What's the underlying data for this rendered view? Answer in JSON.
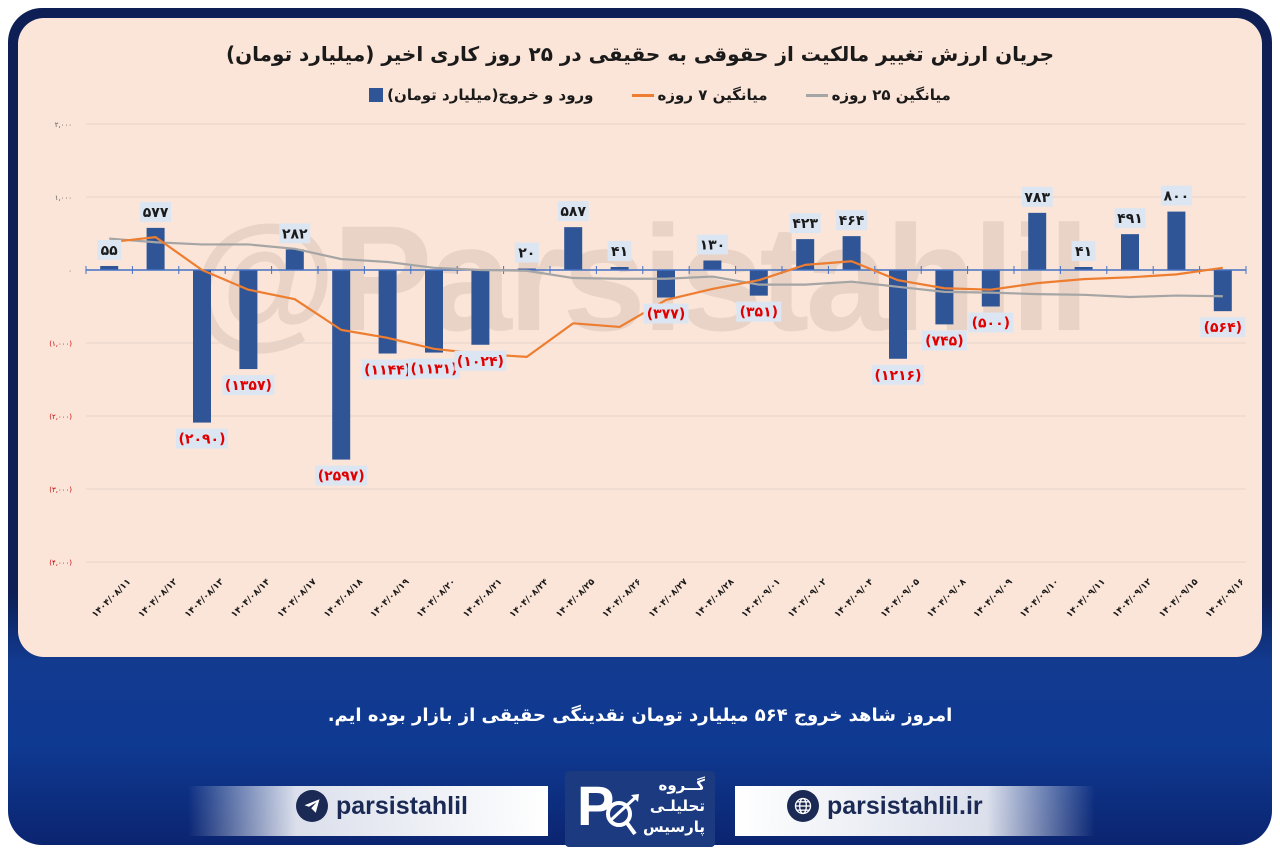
{
  "title": "جریان ارزش تغییر مالکیت از حقوقی به حقیقی در ۲۵ روز کاری اخیر (میلیارد تومان)",
  "legend": [
    {
      "label": "ورود و خروج(میلیارد تومان)",
      "type": "box",
      "color": "#2f5597"
    },
    {
      "label": "میانگین ۷ روزه",
      "type": "line",
      "color": "#ed7d31"
    },
    {
      "label": "میانگین ۲۵ روزه",
      "type": "line",
      "color": "#a5a5a5"
    }
  ],
  "watermark": "@Parsistahlil",
  "message": "امروز شاهد خروج ۵۶۴ میلیارد تومان نقدینگی حقیقی از بازار بوده ایم.",
  "footer": {
    "telegram_handle": "parsistahlil",
    "website": "parsistahlil.ir",
    "logo_text": [
      "گــروه",
      "تحلیلـی",
      "پارسیس"
    ]
  },
  "chart_data": {
    "type": "bar",
    "title": "جریان ارزش تغییر مالکیت از حقوقی به حقیقی در ۲۵ روز کاری اخیر (میلیارد تومان)",
    "xlabel": "",
    "ylabel": "",
    "ylim": [
      -4000,
      2000
    ],
    "yticks": [
      2000,
      1000,
      0,
      -1000,
      -2000,
      -3000,
      -4000
    ],
    "ytick_labels": [
      "۲,۰۰۰",
      "۱,۰۰۰",
      "۰",
      "(۱,۰۰۰)",
      "(۲,۰۰۰)",
      "(۳,۰۰۰)",
      "(۴,۰۰۰)"
    ],
    "grid": true,
    "legend_position": "top",
    "categories": [
      "۱۴۰۴/۰۸/۱۱",
      "۱۴۰۴/۰۸/۱۲",
      "۱۴۰۴/۰۸/۱۳",
      "۱۴۰۴/۰۸/۱۴",
      "۱۴۰۴/۰۸/۱۷",
      "۱۴۰۴/۰۸/۱۸",
      "۱۴۰۴/۰۸/۱۹",
      "۱۴۰۴/۰۸/۲۰",
      "۱۴۰۴/۰۸/۲۱",
      "۱۴۰۴/۰۸/۲۴",
      "۱۴۰۴/۰۸/۲۵",
      "۱۴۰۴/۰۸/۲۶",
      "۱۴۰۴/۰۸/۲۷",
      "۱۴۰۴/۰۸/۲۸",
      "۱۴۰۴/۰۹/۰۱",
      "۱۴۰۴/۰۹/۰۲",
      "۱۴۰۴/۰۹/۰۴",
      "۱۴۰۴/۰۹/۰۵",
      "۱۴۰۴/۰۹/۰۸",
      "۱۴۰۴/۰۹/۰۹",
      "۱۴۰۴/۰۹/۱۰",
      "۱۴۰۴/۰۹/۱۱",
      "۱۴۰۴/۰۹/۱۲",
      "۱۴۰۴/۰۹/۱۵",
      "۱۴۰۴/۰۹/۱۶"
    ],
    "series": [
      {
        "name": "ورود و خروج(میلیارد تومان)",
        "type": "bar",
        "color": "#2f5597",
        "values": [
          55,
          577,
          -2090,
          -1357,
          282,
          -2597,
          -1144,
          -1131,
          -1024,
          20,
          587,
          41,
          -377,
          130,
          -351,
          423,
          464,
          -1216,
          -745,
          -500,
          783,
          41,
          491,
          800,
          -564
        ],
        "labels": [
          "۵۵",
          "۵۷۷",
          "(۲۰۹۰)",
          "(۱۳۵۷)",
          "۲۸۲",
          "(۲۵۹۷)",
          "(۱۱۴۴)",
          "(۱۱۳۱)",
          "(۱۰۲۴)",
          "۲۰",
          "۵۸۷",
          "۴۱",
          "(۳۷۷)",
          "۱۳۰",
          "(۳۵۱)",
          "۴۲۳",
          "۴۶۴",
          "(۱۲۱۶)",
          "(۷۴۵)",
          "(۵۰۰)",
          "۷۸۳",
          "۴۱",
          "۴۹۱",
          "۸۰۰",
          "(۵۶۴)"
        ]
      },
      {
        "name": "میانگین ۷ روزه",
        "type": "line",
        "color": "#ed7d31",
        "values": [
          380,
          450,
          0,
          -270,
          -400,
          -820,
          -930,
          -1080,
          -1150,
          -1190,
          -730,
          -780,
          -410,
          -260,
          -140,
          70,
          120,
          -140,
          -250,
          -270,
          -180,
          -125,
          -100,
          -60,
          30
        ]
      },
      {
        "name": "میانگین ۲۵ روزه",
        "type": "line",
        "color": "#a5a5a5",
        "values": [
          430,
          380,
          350,
          350,
          290,
          150,
          110,
          30,
          0,
          -10,
          -110,
          -120,
          -120,
          -90,
          -200,
          -200,
          -160,
          -230,
          -300,
          -310,
          -330,
          -340,
          -370,
          -350,
          -360
        ]
      }
    ]
  }
}
